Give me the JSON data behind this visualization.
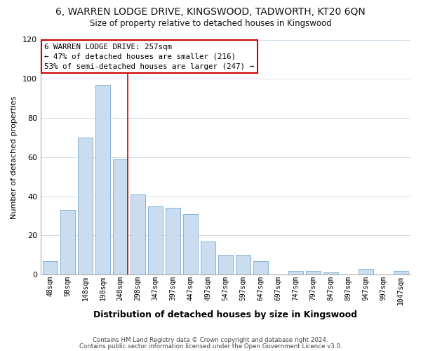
{
  "title": "6, WARREN LODGE DRIVE, KINGSWOOD, TADWORTH, KT20 6QN",
  "subtitle": "Size of property relative to detached houses in Kingswood",
  "xlabel": "Distribution of detached houses by size in Kingswood",
  "ylabel": "Number of detached properties",
  "footer_line1": "Contains HM Land Registry data © Crown copyright and database right 2024.",
  "footer_line2": "Contains public sector information licensed under the Open Government Licence v3.0.",
  "bar_labels": [
    "48sqm",
    "98sqm",
    "148sqm",
    "198sqm",
    "248sqm",
    "298sqm",
    "347sqm",
    "397sqm",
    "447sqm",
    "497sqm",
    "547sqm",
    "597sqm",
    "647sqm",
    "697sqm",
    "747sqm",
    "797sqm",
    "847sqm",
    "897sqm",
    "947sqm",
    "997sqm",
    "1047sqm"
  ],
  "bar_values": [
    7,
    33,
    70,
    97,
    59,
    41,
    35,
    34,
    31,
    17,
    10,
    10,
    7,
    0,
    2,
    2,
    1,
    0,
    3,
    0,
    2
  ],
  "bar_color": "#c9dcf0",
  "bar_edge_color": "#89b4d8",
  "highlight_line_color": "#cc0000",
  "vline_bar_index": 4,
  "annotation_title": "6 WARREN LODGE DRIVE: 257sqm",
  "annotation_line1": "← 47% of detached houses are smaller (216)",
  "annotation_line2": "53% of semi-detached houses are larger (247) →",
  "annotation_box_color": "#ffffff",
  "annotation_box_edge": "#cc0000",
  "ylim": [
    0,
    120
  ],
  "yticks": [
    0,
    20,
    40,
    60,
    80,
    100,
    120
  ],
  "grid_color": "#d0dde8",
  "background_color": "#ffffff"
}
